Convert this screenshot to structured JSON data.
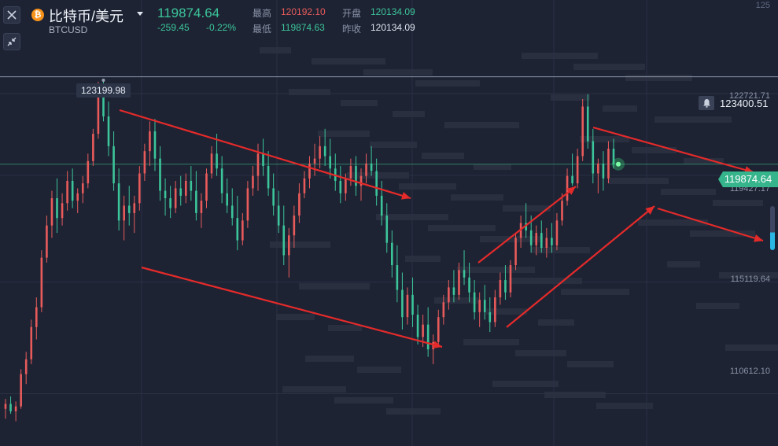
{
  "header": {
    "pair_title": "比特币/美元",
    "symbol_code": "BTCUSD",
    "last_price": "119874.64",
    "change_abs": "-259.45",
    "change_pct": "-0.22%",
    "stats": {
      "high_label": "最高",
      "high_value": "120192.10",
      "open_label": "开盘",
      "open_value": "120134.09",
      "low_label": "最低",
      "low_value": "119874.63",
      "prev_close_label": "昨收",
      "prev_close_value": "120134.09"
    }
  },
  "price_axis": {
    "top_label": "125",
    "labels": [
      "122721.71",
      "119427.17",
      "115119.64",
      "110612.10"
    ]
  },
  "markers": {
    "high_callout": "123199.98",
    "alert_price": "123400.51",
    "current_price": "119874.64"
  },
  "icons": {
    "close": "close-icon",
    "collapse": "collapse-arrows-icon",
    "coin": "bitcoin-icon",
    "alert": "bell-icon",
    "dropdown": "caret-down-icon"
  },
  "colors": {
    "background": "#1d2333",
    "up": "#e95b5b",
    "down": "#3cc59a",
    "annotation_arrow": "#e52a2a",
    "price_tag": "#36b48b"
  },
  "chart_data": {
    "type": "candlestick",
    "y_range": [
      108500,
      126500
    ],
    "candles_ohlc": [
      [
        110000,
        110400,
        109600,
        110200
      ],
      [
        110200,
        110500,
        109800,
        109900
      ],
      [
        109900,
        110300,
        109500,
        110100
      ],
      [
        110100,
        111600,
        110000,
        111400
      ],
      [
        111400,
        112300,
        111000,
        112000
      ],
      [
        112000,
        113600,
        111800,
        113300
      ],
      [
        113300,
        114500,
        112800,
        114100
      ],
      [
        114100,
        116400,
        113900,
        116100
      ],
      [
        116100,
        117800,
        115900,
        117400
      ],
      [
        117400,
        118800,
        116900,
        118500
      ],
      [
        118500,
        119300,
        117100,
        117700
      ],
      [
        117700,
        118700,
        117400,
        118300
      ],
      [
        118300,
        119600,
        118000,
        119200
      ],
      [
        119200,
        119700,
        118100,
        118400
      ],
      [
        118400,
        118900,
        117900,
        118700
      ],
      [
        118700,
        119400,
        118300,
        119100
      ],
      [
        119100,
        120300,
        118900,
        120000
      ],
      [
        120000,
        121300,
        119800,
        121100
      ],
      [
        121100,
        123200,
        120900,
        122900
      ],
      [
        122900,
        123199.98,
        121600,
        121800
      ],
      [
        121800,
        122400,
        120200,
        120600
      ],
      [
        120600,
        121200,
        118800,
        119100
      ],
      [
        119100,
        119700,
        117200,
        117600
      ],
      [
        117600,
        118600,
        116800,
        118200
      ],
      [
        118200,
        119000,
        117400,
        117900
      ],
      [
        117900,
        118600,
        117100,
        118300
      ],
      [
        118300,
        119800,
        118000,
        119500
      ],
      [
        119500,
        120700,
        119200,
        120400
      ],
      [
        120400,
        121600,
        119800,
        121200
      ],
      [
        121200,
        121700,
        119600,
        120100
      ],
      [
        120100,
        120600,
        118400,
        118800
      ],
      [
        118800,
        119300,
        117800,
        118500
      ],
      [
        118500,
        119000,
        117700,
        118100
      ],
      [
        118100,
        119200,
        117900,
        118900
      ],
      [
        118900,
        119400,
        118200,
        118600
      ],
      [
        118600,
        119500,
        118300,
        119200
      ],
      [
        119200,
        119800,
        118400,
        118800
      ],
      [
        118800,
        119600,
        117600,
        117900
      ],
      [
        117900,
        118700,
        117300,
        118400
      ],
      [
        118400,
        119700,
        118100,
        119500
      ],
      [
        119500,
        120600,
        119300,
        120300
      ],
      [
        120300,
        121100,
        119400,
        119700
      ],
      [
        119700,
        120200,
        118300,
        118700
      ],
      [
        118700,
        119300,
        117900,
        118200
      ],
      [
        118200,
        118900,
        117400,
        117700
      ],
      [
        117700,
        118600,
        116400,
        116800
      ],
      [
        116800,
        117900,
        116600,
        117600
      ],
      [
        117600,
        119200,
        117300,
        118900
      ],
      [
        118900,
        119800,
        118600,
        119400
      ],
      [
        119400,
        120700,
        118800,
        120300
      ],
      [
        120300,
        120900,
        119400,
        119800
      ],
      [
        119800,
        120400,
        118600,
        118900
      ],
      [
        118900,
        119500,
        117800,
        118200
      ],
      [
        118200,
        118800,
        117100,
        117400
      ],
      [
        117400,
        118200,
        115800,
        116200
      ],
      [
        116200,
        117300,
        115300,
        117000
      ],
      [
        117000,
        118200,
        116500,
        117800
      ],
      [
        117800,
        119100,
        117500,
        118700
      ],
      [
        118700,
        119600,
        118500,
        119300
      ],
      [
        119300,
        120200,
        118900,
        119900
      ],
      [
        119900,
        120700,
        119400,
        120100
      ],
      [
        120100,
        121000,
        119700,
        120600
      ],
      [
        120600,
        121300,
        119800,
        120200
      ],
      [
        120200,
        120900,
        119300,
        119700
      ],
      [
        119700,
        120300,
        118800,
        119200
      ],
      [
        119200,
        119800,
        118300,
        118700
      ],
      [
        118700,
        119500,
        118400,
        119300
      ],
      [
        119300,
        120100,
        119000,
        119800
      ],
      [
        119800,
        120200,
        118600,
        119000
      ],
      [
        119000,
        119700,
        118400,
        119400
      ],
      [
        119400,
        120300,
        119100,
        119900
      ],
      [
        119900,
        120600,
        119400,
        119600
      ],
      [
        119600,
        120100,
        118200,
        118600
      ],
      [
        118600,
        119200,
        117400,
        117800
      ],
      [
        117800,
        118300,
        116300,
        116700
      ],
      [
        116700,
        117200,
        115300,
        115800
      ],
      [
        115800,
        116600,
        114300,
        114800
      ],
      [
        114800,
        115500,
        113200,
        113700
      ],
      [
        113700,
        114900,
        113400,
        114600
      ],
      [
        114600,
        115300,
        113300,
        113800
      ],
      [
        113800,
        114200,
        112600,
        112900
      ],
      [
        112900,
        113800,
        112500,
        113400
      ],
      [
        113400,
        114100,
        112100,
        112400
      ],
      [
        112400,
        113000,
        111800,
        112700
      ],
      [
        112700,
        114000,
        112500,
        113700
      ],
      [
        113700,
        114600,
        113400,
        114300
      ],
      [
        114300,
        115200,
        114000,
        114900
      ],
      [
        114900,
        115600,
        114300,
        114600
      ],
      [
        114600,
        115900,
        114400,
        115600
      ],
      [
        115600,
        116400,
        115000,
        115300
      ],
      [
        115300,
        115900,
        114300,
        114700
      ],
      [
        114700,
        115200,
        113600,
        113900
      ],
      [
        113900,
        114700,
        113300,
        114400
      ],
      [
        114400,
        115000,
        113600,
        113900
      ],
      [
        113900,
        114500,
        113100,
        113500
      ],
      [
        113500,
        114800,
        113300,
        114500
      ],
      [
        114500,
        115500,
        114200,
        115200
      ],
      [
        115200,
        115800,
        114400,
        114700
      ],
      [
        114700,
        116000,
        114500,
        115800
      ],
      [
        115800,
        117100,
        115600,
        116900
      ],
      [
        116900,
        117800,
        116500,
        117500
      ],
      [
        117500,
        118300,
        116900,
        117200
      ],
      [
        117200,
        117800,
        116300,
        116600
      ],
      [
        116600,
        117400,
        116200,
        117100
      ],
      [
        117100,
        117600,
        116300,
        116500
      ],
      [
        116500,
        117300,
        116100,
        116900
      ],
      [
        116900,
        117500,
        116300,
        116600
      ],
      [
        116600,
        117900,
        116400,
        117600
      ],
      [
        117600,
        118700,
        117400,
        118400
      ],
      [
        118400,
        119700,
        118200,
        119400
      ],
      [
        119400,
        120300,
        119000,
        119100
      ],
      [
        119100,
        120500,
        118900,
        120200
      ],
      [
        120200,
        122500,
        120000,
        122200
      ],
      [
        122200,
        122700,
        120500,
        120800
      ],
      [
        120800,
        121300,
        119100,
        119500
      ],
      [
        119500,
        120100,
        118700,
        119900
      ],
      [
        119900,
        120400,
        118800,
        119300
      ],
      [
        119300,
        120800,
        119100,
        120500
      ],
      [
        120500,
        120900,
        119700,
        119874.64
      ]
    ]
  }
}
